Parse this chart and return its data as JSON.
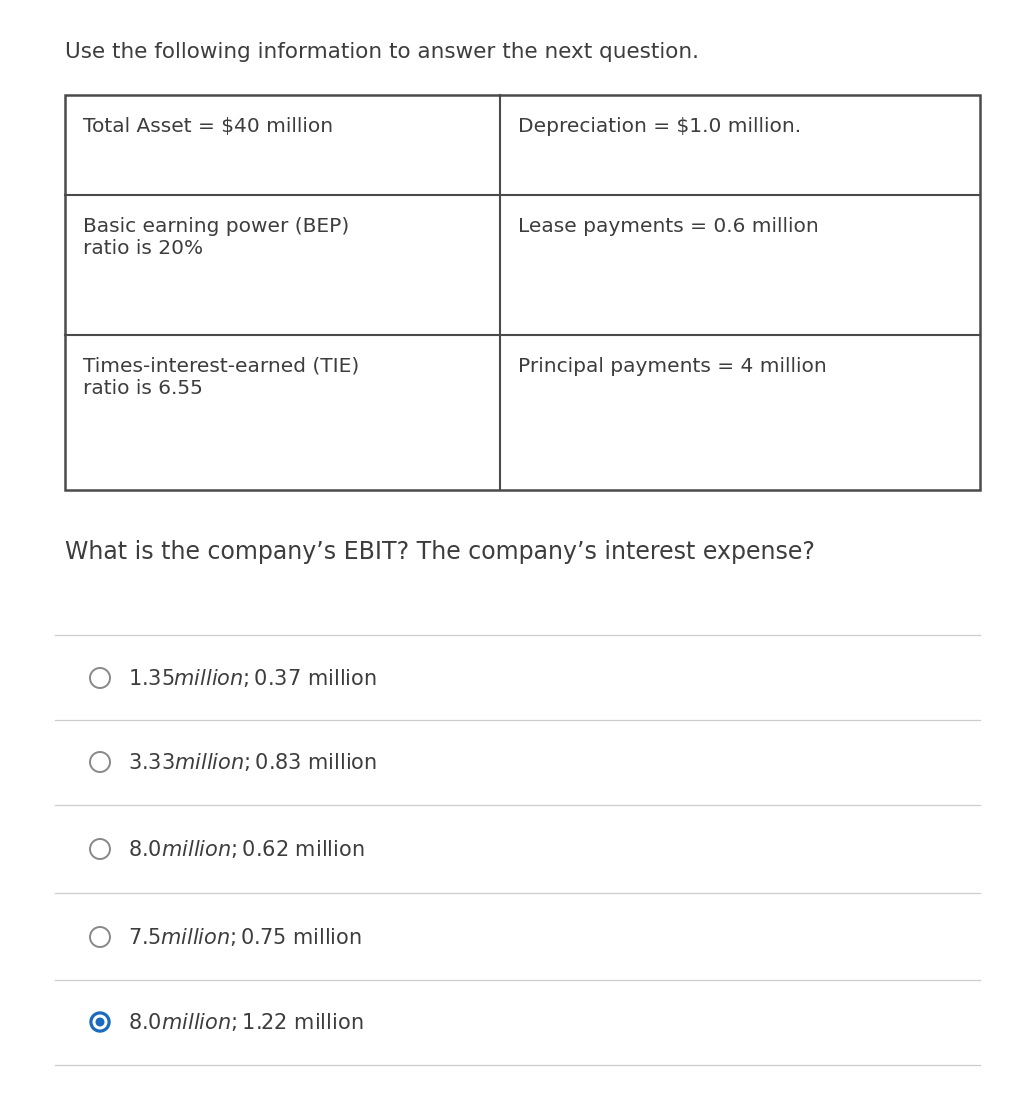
{
  "header_text": "Use the following information to answer the next question.",
  "table": {
    "cells": [
      [
        "Total Asset = $40 million",
        "Depreciation = $1.0 million."
      ],
      [
        "Basic earning power (BEP)\nratio is 20%",
        "Lease payments = 0.6 million"
      ],
      [
        "Times-interest-earned (TIE)\nratio is 6.55",
        "Principal payments = 4 million"
      ]
    ]
  },
  "question": "What is the company’s EBIT? The company’s interest expense?",
  "options": [
    "$1.35 million; $0.37 million",
    "$3.33 million; $0.83 million",
    "$8.0 million; $0.62 million",
    "$7.5 million; $0.75 million",
    "$8.0 million; $1.22 million"
  ],
  "correct_index": 4,
  "bg_color": "#ffffff",
  "text_color": "#3d3d3d",
  "table_border_color": "#4a4a4a",
  "option_line_color": "#cccccc",
  "selected_circle_fill": "#1a6bbf",
  "selected_circle_edge": "#1a6bbf",
  "unselected_circle_color": "#888888",
  "header_fontsize": 15.5,
  "cell_fontsize": 14.5,
  "question_fontsize": 17,
  "option_fontsize": 15
}
